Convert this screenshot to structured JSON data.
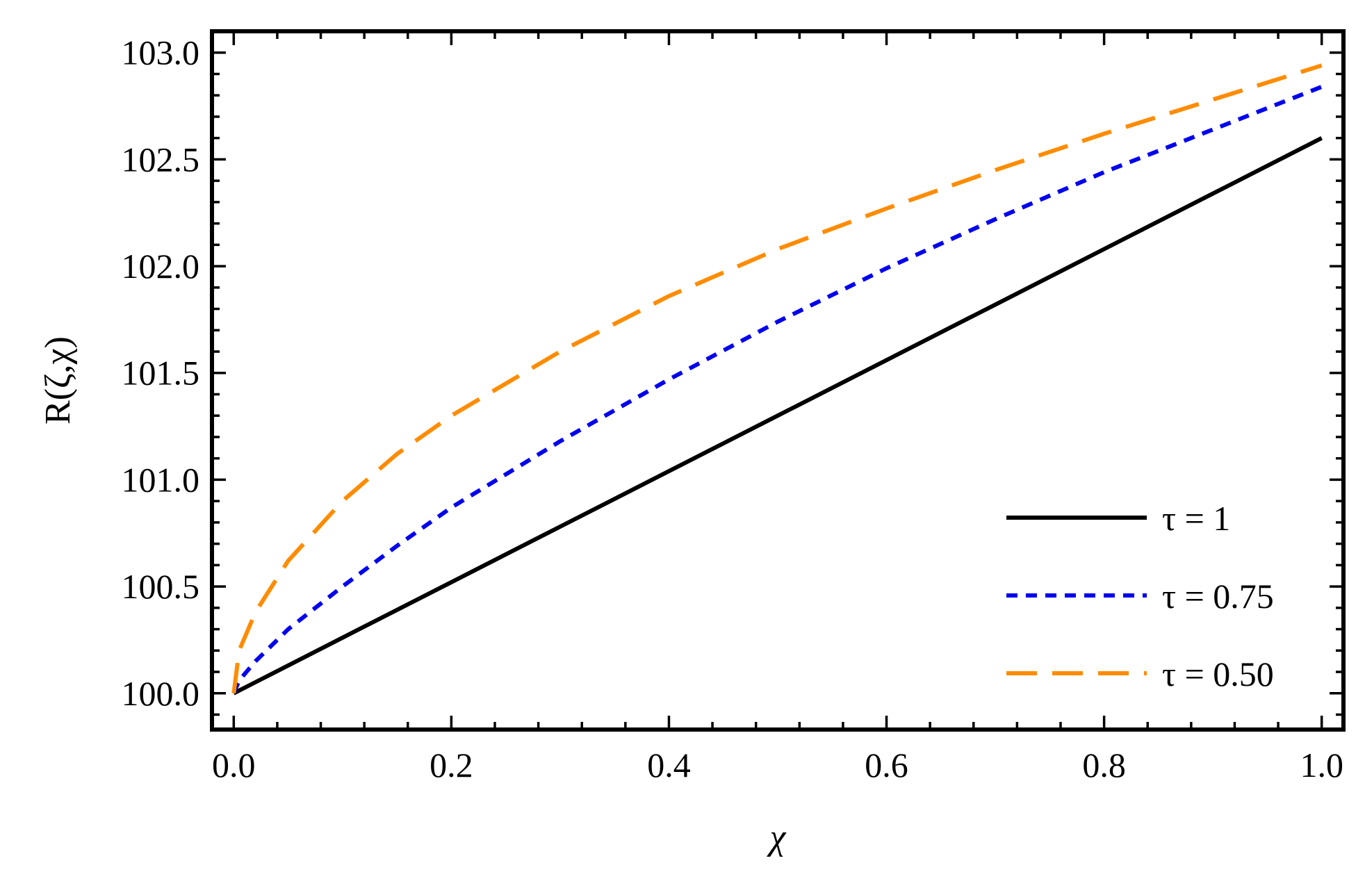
{
  "chart_data": {
    "type": "line",
    "title": "",
    "xlabel": "χ",
    "ylabel": "R(ζ,χ)",
    "xlim": [
      -0.02,
      1.02
    ],
    "ylim": [
      99.83,
      103.1
    ],
    "x_ticks": [
      "0.0",
      "0.2",
      "0.4",
      "0.6",
      "0.8",
      "1.0"
    ],
    "y_ticks": [
      "100.0",
      "100.5",
      "101.0",
      "101.5",
      "102.0",
      "102.5",
      "103.0"
    ],
    "grid": false,
    "legend_position": "bottom-right",
    "series": [
      {
        "name": "τ = 1",
        "color": "#000000",
        "style": "solid",
        "x": [
          0.0,
          0.1,
          0.2,
          0.3,
          0.4,
          0.5,
          0.6,
          0.7,
          0.8,
          0.9,
          1.0
        ],
        "y": [
          100.0,
          100.26,
          100.52,
          100.78,
          101.04,
          101.3,
          101.56,
          101.82,
          102.08,
          102.34,
          102.6
        ]
      },
      {
        "name": "τ = 0.75",
        "color": "#0000ee",
        "style": "dotted",
        "x": [
          0.0,
          0.005,
          0.02,
          0.05,
          0.1,
          0.15,
          0.2,
          0.3,
          0.4,
          0.5,
          0.6,
          0.7,
          0.8,
          0.9,
          1.0
        ],
        "y": [
          100.0,
          100.06,
          100.15,
          100.3,
          100.5,
          100.69,
          100.87,
          101.18,
          101.47,
          101.74,
          101.99,
          102.22,
          102.44,
          102.64,
          102.84
        ]
      },
      {
        "name": "τ = 0.50",
        "color": "#ff8c00",
        "style": "dashed",
        "x": [
          0.0,
          0.005,
          0.02,
          0.05,
          0.1,
          0.15,
          0.2,
          0.3,
          0.4,
          0.5,
          0.6,
          0.7,
          0.8,
          0.9,
          1.0
        ],
        "y": [
          100.0,
          100.2,
          100.38,
          100.62,
          100.9,
          101.12,
          101.3,
          101.6,
          101.86,
          102.08,
          102.27,
          102.45,
          102.62,
          102.78,
          102.94
        ]
      }
    ]
  }
}
